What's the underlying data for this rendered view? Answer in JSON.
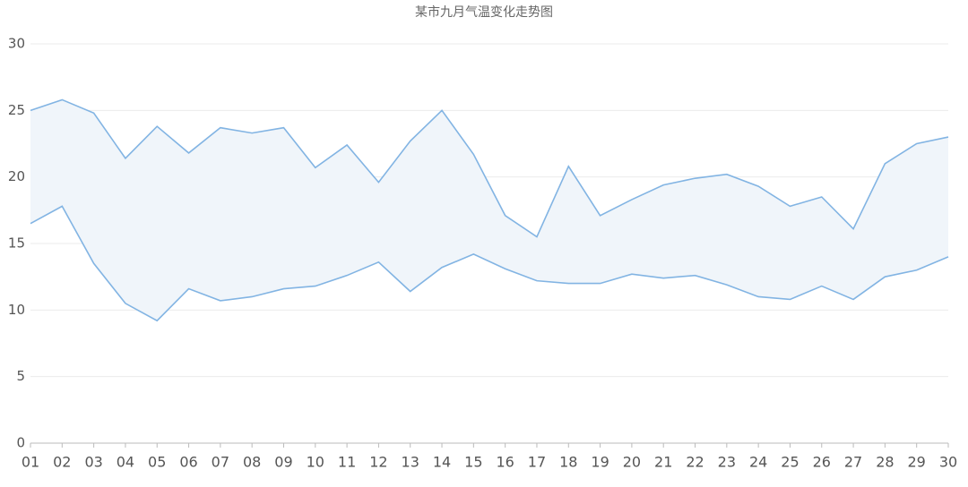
{
  "chart_data": {
    "type": "range-line",
    "title": "某市九月气温变化走势图",
    "categories": [
      "01",
      "02",
      "03",
      "04",
      "05",
      "06",
      "07",
      "08",
      "09",
      "10",
      "11",
      "12",
      "13",
      "14",
      "15",
      "16",
      "17",
      "18",
      "19",
      "20",
      "21",
      "22",
      "23",
      "24",
      "25",
      "26",
      "27",
      "28",
      "29",
      "30"
    ],
    "series": [
      {
        "color": "#82b4e3",
        "values": [
          25.0,
          25.8,
          24.8,
          21.4,
          23.8,
          21.8,
          23.7,
          23.3,
          23.7,
          20.7,
          22.4,
          19.6,
          22.7,
          25.0,
          21.7,
          17.1,
          15.5,
          20.8,
          17.1,
          18.3,
          19.4,
          19.9,
          20.2,
          19.3,
          17.8,
          18.5,
          16.1,
          21.0,
          22.5,
          23.0
        ]
      },
      {
        "color": "#82b4e3",
        "values": [
          16.5,
          17.8,
          13.5,
          10.5,
          9.2,
          11.6,
          10.7,
          11.0,
          11.6,
          11.8,
          12.6,
          13.6,
          11.4,
          13.2,
          14.2,
          13.1,
          12.2,
          12.0,
          12.0,
          12.7,
          12.4,
          12.6,
          11.9,
          11.0,
          10.8,
          11.8,
          10.8,
          12.5,
          13.0,
          14.0
        ]
      }
    ],
    "band_color": "#f0f5fa",
    "ylim": [
      0,
      30
    ],
    "yticks": [
      0,
      5,
      10,
      15,
      20,
      25,
      30
    ],
    "grid": true
  }
}
